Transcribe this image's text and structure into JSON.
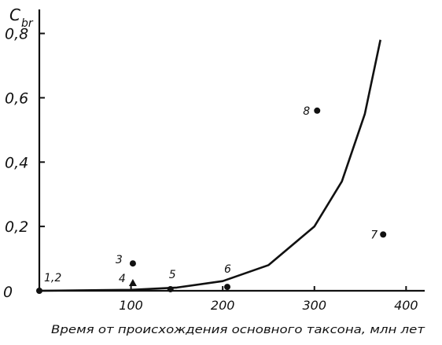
{
  "chart_data": {
    "type": "scatter",
    "title": "",
    "ylabel": "C",
    "ylabel_sub": "br",
    "xlabel": "Время от происхождения основного таксона, млн лет",
    "xlim": [
      0,
      410
    ],
    "ylim": [
      0,
      0.86
    ],
    "origin_label": "0",
    "x_ticks": [
      {
        "value": 100,
        "label": "100"
      },
      {
        "value": 200,
        "label": "200"
      },
      {
        "value": 300,
        "label": "300"
      },
      {
        "value": 400,
        "label": "400"
      }
    ],
    "y_ticks": [
      {
        "value": 0.2,
        "label": "0,2"
      },
      {
        "value": 0.4,
        "label": "0,4"
      },
      {
        "value": 0.6,
        "label": "0,6"
      },
      {
        "value": 0.8,
        "label": "0,8"
      }
    ],
    "points": [
      {
        "label": "1,2",
        "x": 0,
        "y": 0,
        "marker": "circle"
      },
      {
        "label": "3",
        "x": 102,
        "y": 0.085,
        "marker": "circle"
      },
      {
        "label": "4",
        "x": 102,
        "y": 0.022,
        "marker": "triangle"
      },
      {
        "label": "5",
        "x": 143,
        "y": 0.005,
        "marker": "circle"
      },
      {
        "label": "6",
        "x": 205,
        "y": 0.012,
        "marker": "circle"
      },
      {
        "label": "7",
        "x": 375,
        "y": 0.175,
        "marker": "circle"
      },
      {
        "label": "8",
        "x": 303,
        "y": 0.56,
        "marker": "circle"
      }
    ],
    "curve": [
      {
        "x": 0,
        "y": 0
      },
      {
        "x": 100,
        "y": 0.003
      },
      {
        "x": 150,
        "y": 0.01
      },
      {
        "x": 200,
        "y": 0.03
      },
      {
        "x": 250,
        "y": 0.08
      },
      {
        "x": 300,
        "y": 0.2
      },
      {
        "x": 330,
        "y": 0.34
      },
      {
        "x": 355,
        "y": 0.55
      },
      {
        "x": 372,
        "y": 0.78
      }
    ],
    "grid": false,
    "legend": "none"
  }
}
